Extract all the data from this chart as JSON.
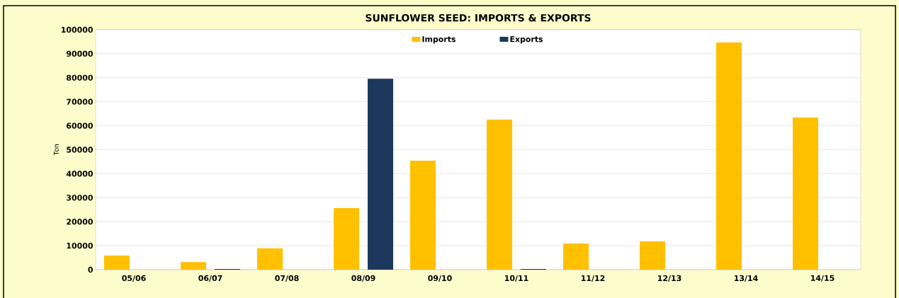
{
  "chart_data": {
    "type": "bar",
    "title": "SUNFLOWER SEED: IMPORTS & EXPORTS",
    "ylabel": "Ton",
    "categories": [
      "05/06",
      "06/07",
      "07/08",
      "08/09",
      "09/10",
      "10/11",
      "11/12",
      "12/13",
      "13/14",
      "14/15"
    ],
    "series": [
      {
        "name": "Imports",
        "color": "#ffc000",
        "values": [
          5900,
          3200,
          8900,
          25700,
          45400,
          62500,
          10900,
          11800,
          94700,
          63400
        ]
      },
      {
        "name": "Exports",
        "color": "#1b375c",
        "values": [
          0,
          300,
          0,
          79600,
          0,
          300,
          0,
          0,
          0,
          0
        ]
      }
    ],
    "ylim": [
      0,
      100000
    ],
    "yticks": [
      0,
      10000,
      20000,
      30000,
      40000,
      50000,
      60000,
      70000,
      80000,
      90000,
      100000
    ],
    "grid": "y",
    "legend": "top"
  }
}
